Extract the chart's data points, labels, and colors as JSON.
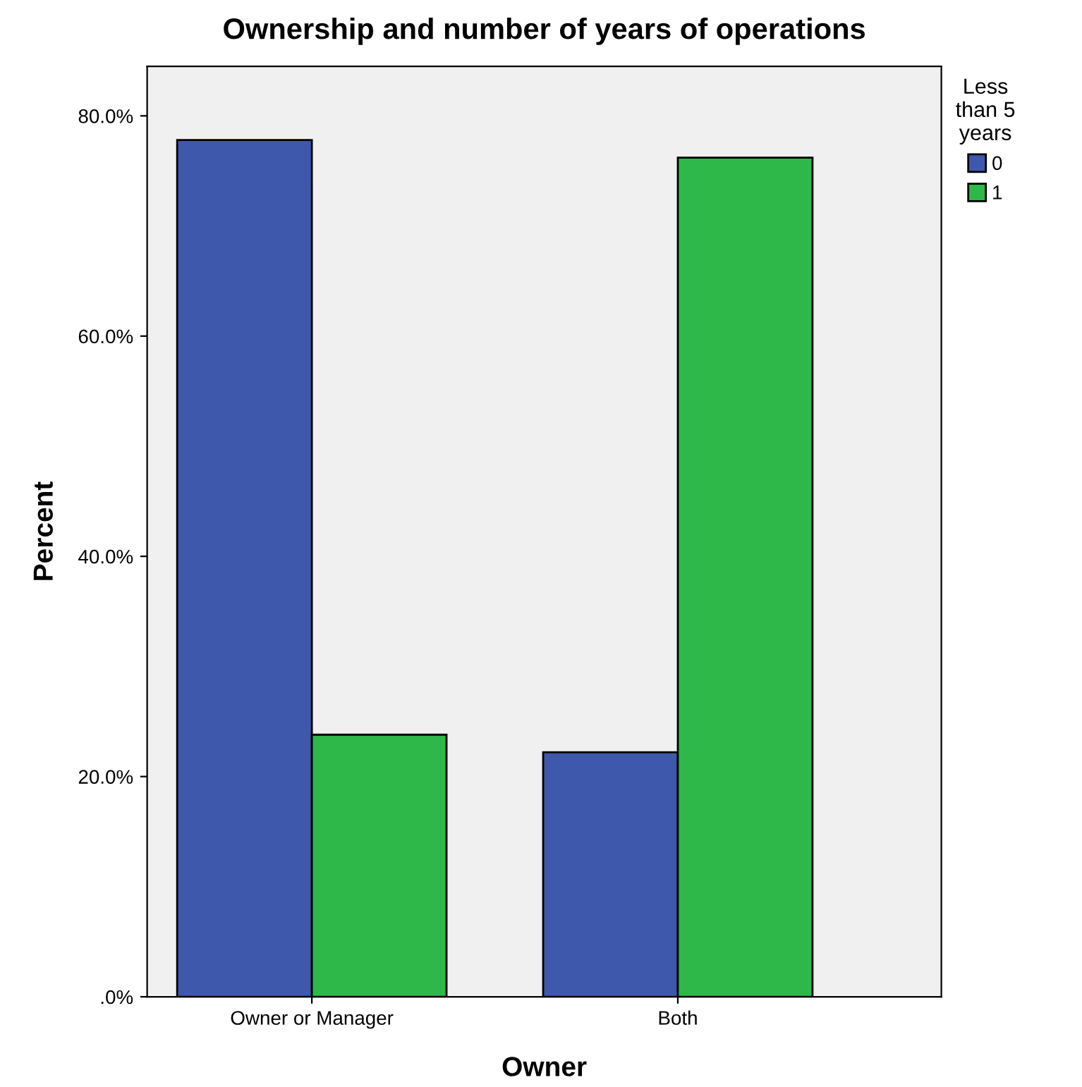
{
  "chart_data": {
    "type": "bar",
    "title": "Ownership and number of years of operations",
    "xlabel": "Owner",
    "ylabel": "Percent",
    "legend_title": "Less\nthan 5\nyears",
    "categories": [
      "Owner or Manager",
      "Both"
    ],
    "series": [
      {
        "name": "0",
        "color": "#3e58ac",
        "values": [
          77.8,
          22.2
        ]
      },
      {
        "name": "1",
        "color": "#2eb84a",
        "values": [
          23.8,
          76.2
        ]
      }
    ],
    "ylim": [
      0,
      84.5
    ],
    "yticks": [
      {
        "value": 0,
        "label": ".0%"
      },
      {
        "value": 20,
        "label": "20.0%"
      },
      {
        "value": 40,
        "label": "40.0%"
      },
      {
        "value": 60,
        "label": "60.0%"
      },
      {
        "value": 80,
        "label": "80.0%"
      }
    ],
    "grid": false,
    "legend": "top right"
  }
}
